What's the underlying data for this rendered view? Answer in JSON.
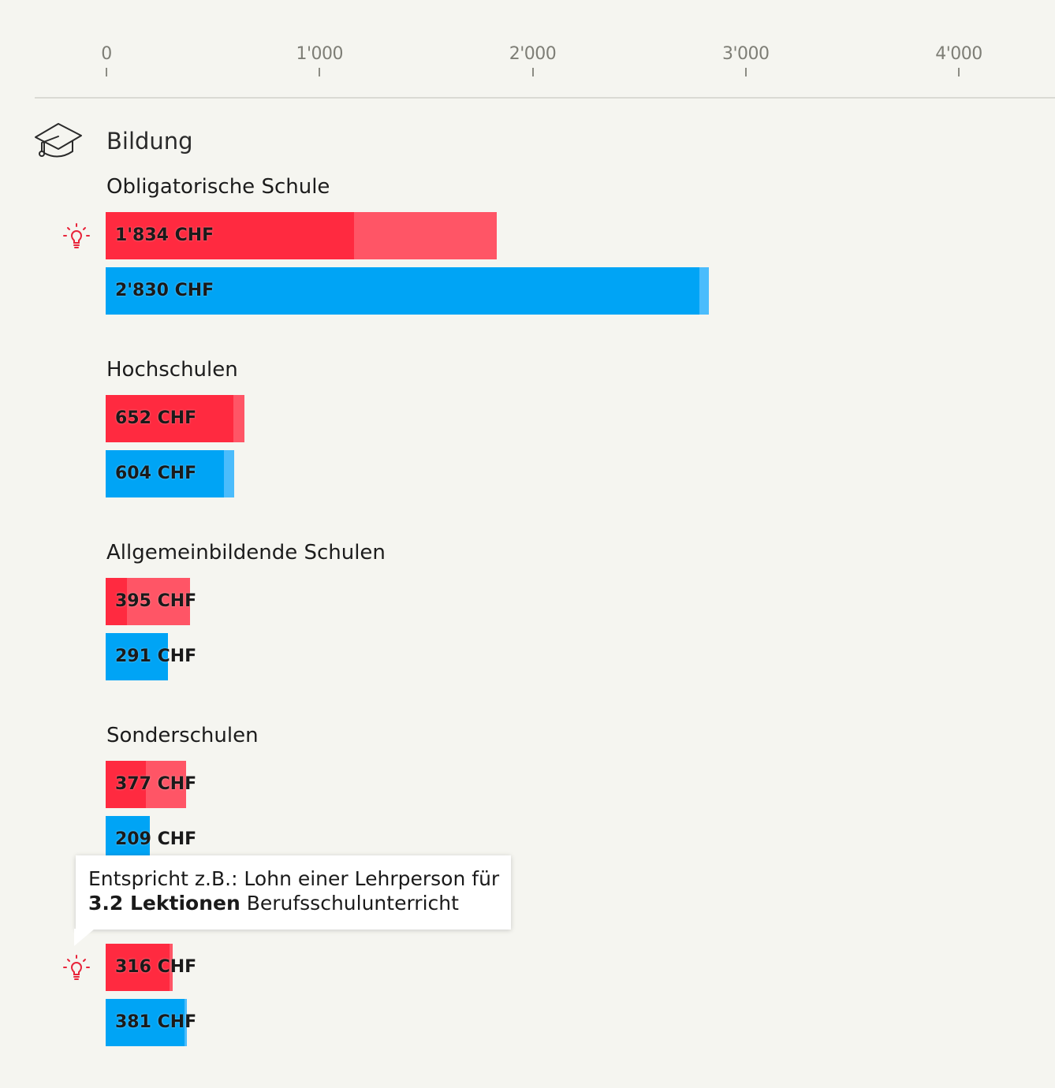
{
  "colors": {
    "red_dark": "#ff2a40",
    "red_light": "#ff5566",
    "blue_dark": "#00a4f5",
    "blue_light": "#4bbcfc",
    "tick_text": "#7e7e76"
  },
  "section": {
    "title": "Bildung",
    "icon": "graduation-cap-icon"
  },
  "tooltip": {
    "line1": "Entspricht z.B.: Lohn einer Lehrperson für",
    "bold": "3.2 Lektionen",
    "rest": " Berufsschulunterricht"
  },
  "chart_data": {
    "type": "bar",
    "orientation": "horizontal",
    "x_ticks": [
      "0",
      "1'000",
      "2'000",
      "3'000",
      "4'000"
    ],
    "xlim": [
      0,
      4000
    ],
    "groups": [
      {
        "label": "Obligatorische Schule",
        "tip": true,
        "bars": [
          {
            "color": "red",
            "label": "1'834 CHF",
            "value": 1834,
            "dark_value": 1165
          },
          {
            "color": "blue",
            "label": "2'830 CHF",
            "value": 2830,
            "dark_value": 2785
          }
        ]
      },
      {
        "label": "Hochschulen",
        "tip": false,
        "bars": [
          {
            "color": "red",
            "label": "652 CHF",
            "value": 652,
            "dark_value": 600
          },
          {
            "color": "blue",
            "label": "604 CHF",
            "value": 604,
            "dark_value": 555
          }
        ]
      },
      {
        "label": "Allgemeinbildende Schulen",
        "tip": false,
        "bars": [
          {
            "color": "red",
            "label": "395 CHF",
            "value": 395,
            "dark_value": 100
          },
          {
            "color": "blue",
            "label": "291 CHF",
            "value": 291,
            "dark_value": 291
          }
        ]
      },
      {
        "label": "Sonderschulen",
        "tip": false,
        "bars": [
          {
            "color": "red",
            "label": "377 CHF",
            "value": 377,
            "dark_value": 190
          },
          {
            "color": "blue",
            "label": "209 CHF",
            "value": 209,
            "dark_value": 209
          }
        ]
      },
      {
        "label": "",
        "tip": true,
        "bars": [
          {
            "color": "red",
            "label": "316 CHF",
            "value": 316,
            "dark_value": 300
          },
          {
            "color": "blue",
            "label": "381 CHF",
            "value": 381,
            "dark_value": 370
          }
        ]
      }
    ]
  }
}
